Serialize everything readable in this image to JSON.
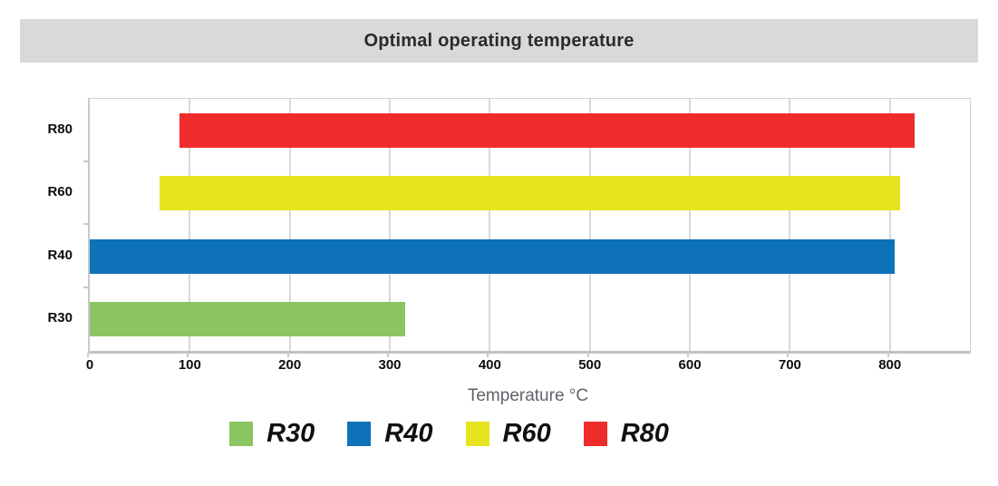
{
  "title": "Optimal operating temperature",
  "chart_data": {
    "type": "bar",
    "orientation": "horizontal",
    "title": "Optimal operating temperature",
    "xlabel": "Temperature °C",
    "xlim": [
      0,
      880
    ],
    "xticks": [
      0,
      100,
      200,
      300,
      400,
      500,
      600,
      700,
      800
    ],
    "grid": true,
    "categories_top_to_bottom": [
      "R80",
      "R60",
      "R40",
      "R30"
    ],
    "series": [
      {
        "name": "R30",
        "color": "#8bc462",
        "range_c": [
          0,
          315
        ]
      },
      {
        "name": "R40",
        "color": "#0e72b8",
        "range_c": [
          0,
          805
        ]
      },
      {
        "name": "R60",
        "color": "#e8e31f",
        "range_c": [
          70,
          810
        ]
      },
      {
        "name": "R80",
        "color": "#ee2c2c",
        "range_c": [
          90,
          825
        ]
      }
    ],
    "legend": {
      "position": "bottom",
      "entries": [
        "R30",
        "R40",
        "R60",
        "R80"
      ]
    }
  }
}
